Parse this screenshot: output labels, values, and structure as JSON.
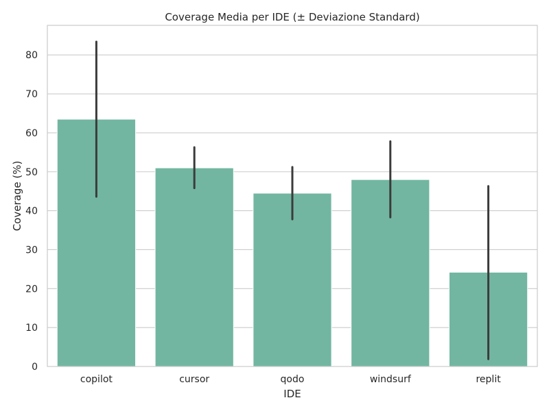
{
  "chart_data": {
    "type": "bar",
    "title": "Coverage Media per IDE (± Deviazione Standard)",
    "xlabel": "IDE",
    "ylabel": "Coverage (%)",
    "categories": [
      "copilot",
      "cursor",
      "qodo",
      "windsurf",
      "replit"
    ],
    "values": [
      63.5,
      51.0,
      44.5,
      48.0,
      24.2
    ],
    "error_low": [
      43.6,
      45.8,
      37.8,
      38.3,
      1.9
    ],
    "error_high": [
      83.4,
      56.3,
      51.2,
      57.8,
      46.3
    ],
    "yticks": [
      0,
      10,
      20,
      30,
      40,
      50,
      60,
      70,
      80
    ],
    "ylim": [
      0,
      87.6
    ],
    "grid": "horizontal",
    "colors": {
      "bar": "#72b6a1",
      "error": "#3b3b3b",
      "grid": "#cccccc",
      "spine": "#cccccc"
    }
  }
}
